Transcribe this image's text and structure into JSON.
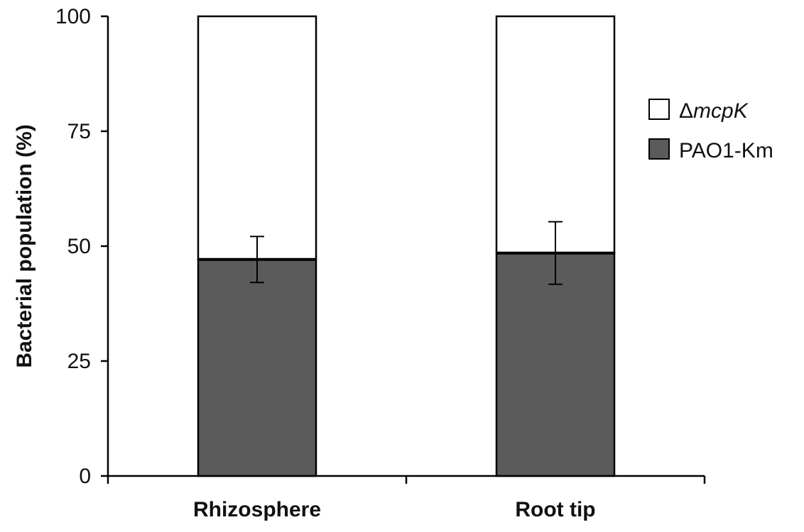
{
  "chart_data": {
    "type": "bar",
    "stacked": true,
    "percent": true,
    "categories": [
      "Rhizosphere",
      "Root tip"
    ],
    "series": [
      {
        "name": "PAO1-Km",
        "values": [
          47.1,
          48.5
        ],
        "error": [
          5.0,
          6.8
        ],
        "color": "#5b5b5b"
      },
      {
        "name": "ΔmcpK",
        "values": [
          52.9,
          51.5
        ],
        "color": "#ffffff"
      }
    ],
    "legend": [
      {
        "prefix": "Δ",
        "label": "mcpK",
        "italic": true,
        "color": "#ffffff"
      },
      {
        "prefix": "",
        "label": "PAO1-Km",
        "italic": false,
        "color": "#5b5b5b"
      }
    ],
    "ylabel": "Bacterial population (%)",
    "xlabel": "",
    "ylim": [
      0,
      100
    ],
    "yticks": [
      "0",
      "25",
      "50",
      "75",
      "100"
    ],
    "grid": false,
    "legend_position": "right"
  }
}
